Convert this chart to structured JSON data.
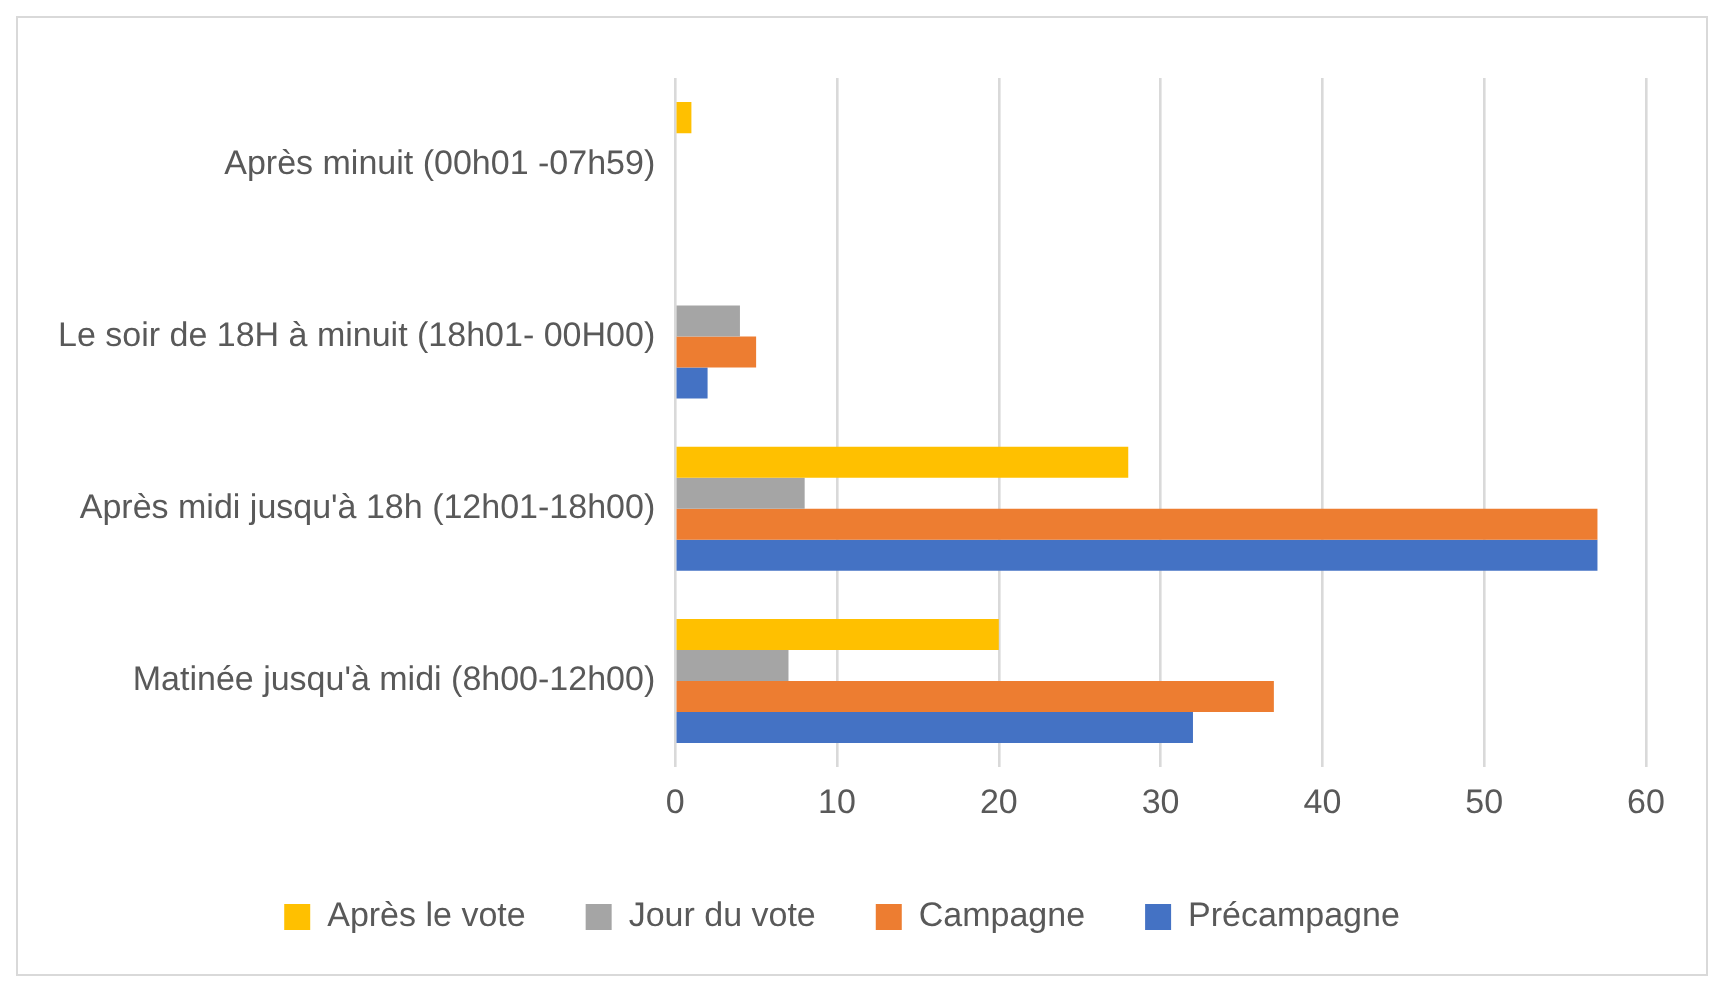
{
  "chart_data": {
    "type": "bar",
    "orientation": "horizontal",
    "categories": [
      "Après minuit (00h01 -07h59)",
      "Le soir de 18H à minuit (18h01- 00H00)",
      "Après midi jusqu'à 18h (12h01-18h00)",
      "Matinée jusqu'à midi (8h00-12h00)"
    ],
    "series": [
      {
        "name": "Après le vote",
        "color": "#ffc000",
        "values": [
          1,
          0,
          28,
          20
        ]
      },
      {
        "name": "Jour du vote",
        "color": "#a5a5a5",
        "values": [
          0,
          4,
          8,
          7
        ]
      },
      {
        "name": "Campagne",
        "color": "#ed7d31",
        "values": [
          0,
          5,
          57,
          37
        ]
      },
      {
        "name": "Précampagne",
        "color": "#4472c4",
        "values": [
          0,
          2,
          57,
          32
        ]
      }
    ],
    "xlim": [
      0,
      60
    ],
    "xticks": [
      0,
      10,
      20,
      30,
      40,
      50,
      60
    ],
    "grid": "x",
    "legend": "bottom"
  }
}
